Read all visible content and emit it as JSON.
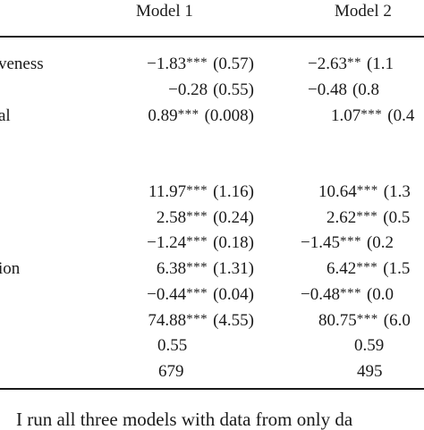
{
  "header": {
    "col1": "Model 1",
    "col2": "Model 2"
  },
  "labels": {
    "row1": "veness",
    "row3": "al",
    "row9": "ion"
  },
  "rows": [
    {
      "m1_coef": "−1.83",
      "m1_stars": "***",
      "m1_se": "(0.57)",
      "m2_coef": "−2.63",
      "m2_stars": "**",
      "m2_se": "(1.1"
    },
    {
      "m1_coef": "−0.28",
      "m1_stars": "",
      "m1_se": "(0.55)",
      "m2_coef": "−0.48",
      "m2_stars": "",
      "m2_se": "(0.8"
    },
    {
      "m1_coef": "0.89",
      "m1_stars": "***",
      "m1_se": "(0.008)",
      "m2_coef": "1.07",
      "m2_stars": "***",
      "m2_se": "(0.4"
    },
    {
      "m1_coef": "11.97",
      "m1_stars": "***",
      "m1_se": "(1.16)",
      "m2_coef": "10.64",
      "m2_stars": "***",
      "m2_se": "(1.3"
    },
    {
      "m1_coef": "2.58",
      "m1_stars": "***",
      "m1_se": "(0.24)",
      "m2_coef": "2.62",
      "m2_stars": "***",
      "m2_se": "(0.5"
    },
    {
      "m1_coef": "−1.24",
      "m1_stars": "***",
      "m1_se": "(0.18)",
      "m2_coef": "−1.45",
      "m2_stars": "***",
      "m2_se": "(0.2"
    },
    {
      "m1_coef": "6.38",
      "m1_stars": "***",
      "m1_se": "(1.31)",
      "m2_coef": "6.42",
      "m2_stars": "***",
      "m2_se": "(1.5"
    },
    {
      "m1_coef": "−0.44",
      "m1_stars": "***",
      "m1_se": "(0.04)",
      "m2_coef": "−0.48",
      "m2_stars": "***",
      "m2_se": "(0.0"
    },
    {
      "m1_coef": "74.88",
      "m1_stars": "***",
      "m1_se": "(4.55)",
      "m2_coef": "80.75",
      "m2_stars": "***",
      "m2_se": "(6.0"
    }
  ],
  "stats": {
    "r2_m1": "0.55",
    "r2_m2": "0.59",
    "n_m1": "679",
    "n_m2": "495"
  },
  "caption": "I run all three models with data from only da"
}
